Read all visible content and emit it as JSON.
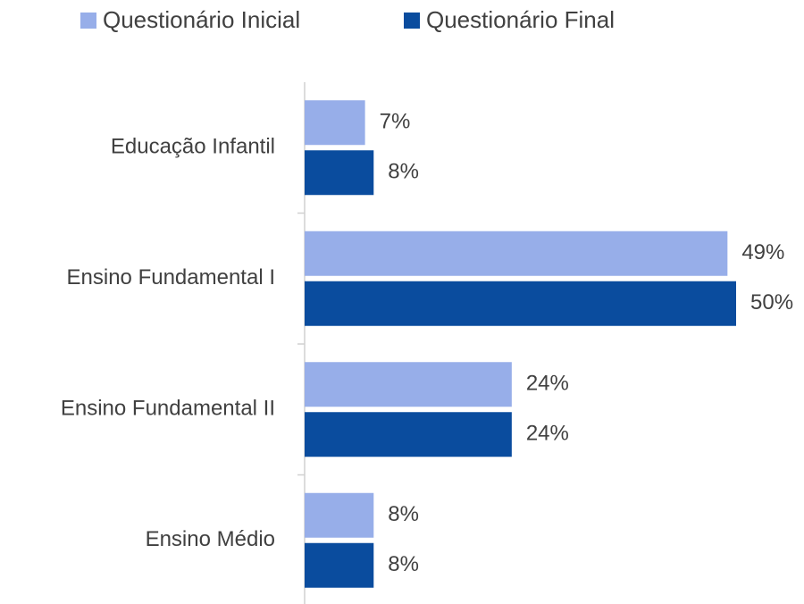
{
  "chart_data": {
    "type": "barh",
    "categories": [
      "Educação Infantil",
      "Ensino Fundamental I",
      "Ensino Fundamental II",
      "Ensino Médio"
    ],
    "series": [
      {
        "name": "Questionário Inicial",
        "color": "#97aee9",
        "values": [
          7,
          49,
          24,
          8
        ],
        "value_labels": [
          "7%",
          "49%",
          "24%",
          "8%"
        ]
      },
      {
        "name": "Questionário Final",
        "color": "#0a4c9e",
        "values": [
          8,
          50,
          24,
          8
        ],
        "value_labels": [
          "8%",
          "50%",
          "24%",
          "8%"
        ]
      }
    ],
    "xlim": [
      0,
      50
    ],
    "legend": "top"
  }
}
